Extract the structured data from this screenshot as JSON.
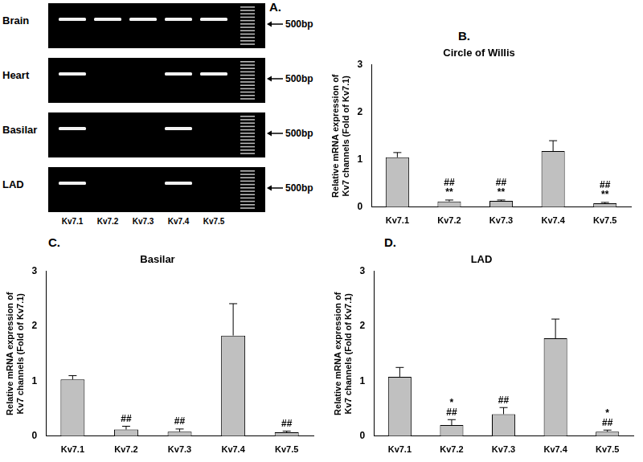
{
  "gel": {
    "panel": "A.",
    "lanes": [
      "Kv7.1",
      "Kv7.2",
      "Kv7.3",
      "Kv7.4",
      "Kv7.5"
    ],
    "marker_label": "500bp",
    "rows": [
      {
        "label": "Brain",
        "bands": [
          true,
          true,
          true,
          true,
          true
        ]
      },
      {
        "label": "Heart",
        "bands": [
          true,
          false,
          false,
          true,
          true
        ]
      },
      {
        "label": "Basilar",
        "bands": [
          true,
          false,
          false,
          true,
          false
        ]
      },
      {
        "label": "LAD",
        "bands": [
          true,
          false,
          false,
          true,
          false
        ]
      }
    ]
  },
  "chart_data": [
    {
      "type": "bar",
      "panel": "B.",
      "title": "Circle of Willis",
      "ylabel": [
        "Relative mRNA expression of",
        "Kv7 channels (Fold of Kv7.1)"
      ],
      "categories": [
        "Kv7.1",
        "Kv7.2",
        "Kv7.3",
        "Kv7.4",
        "Kv7.5"
      ],
      "values": [
        1.05,
        0.12,
        0.13,
        1.18,
        0.08
      ],
      "errors": [
        0.1,
        0.03,
        0.02,
        0.22,
        0.02
      ],
      "annotations": [
        [],
        [
          "##",
          "**"
        ],
        [
          "##",
          "**"
        ],
        [],
        [
          "##",
          "**"
        ]
      ],
      "color": "#c0c0c0",
      "ylim": [
        0,
        3
      ],
      "yticks": [
        0,
        1,
        2,
        3
      ],
      "grid": false
    },
    {
      "type": "bar",
      "panel": "C.",
      "title": "Basilar",
      "ylabel": [
        "Relative mRNA expression of",
        "Kv7 channels (Fold of Kv7.1)"
      ],
      "categories": [
        "Kv7.1",
        "Kv7.2",
        "Kv7.3",
        "Kv7.4",
        "Kv7.5"
      ],
      "values": [
        1.03,
        0.12,
        0.08,
        1.83,
        0.07
      ],
      "errors": [
        0.07,
        0.06,
        0.05,
        0.58,
        0.02
      ],
      "annotations": [
        [],
        [
          "##"
        ],
        [
          "##"
        ],
        [],
        [
          "##"
        ]
      ],
      "color": "#c0c0c0",
      "ylim": [
        0,
        3
      ],
      "yticks": [
        0,
        1,
        2,
        3
      ],
      "grid": false
    },
    {
      "type": "bar",
      "panel": "D.",
      "title": "LAD",
      "ylabel": [
        "Relative mRNA expression of",
        "Kv7 channels (Fold of Kv7.1)"
      ],
      "categories": [
        "Kv7.1",
        "Kv7.2",
        "Kv7.3",
        "Kv7.4",
        "Kv7.5"
      ],
      "values": [
        1.08,
        0.2,
        0.4,
        1.78,
        0.08
      ],
      "errors": [
        0.17,
        0.1,
        0.12,
        0.35,
        0.03
      ],
      "annotations": [
        [],
        [
          "*",
          "##"
        ],
        [
          "##"
        ],
        [],
        [
          "*",
          "##"
        ]
      ],
      "color": "#c0c0c0",
      "ylim": [
        0,
        3
      ],
      "yticks": [
        0,
        1,
        2,
        3
      ],
      "grid": false
    }
  ]
}
